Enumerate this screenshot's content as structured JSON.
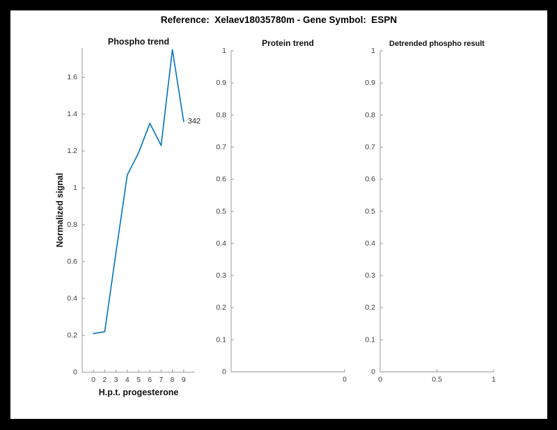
{
  "header": {
    "title": "Reference:  Xelaev18035780m - Gene Symbol:  ESPN"
  },
  "colors": {
    "line_blue": "#0072BD",
    "axis_gray": "#999999",
    "tick_text": "#3b3b3b",
    "figure_background": "#ffffff",
    "frame_background": "#000000"
  },
  "chart_data": [
    {
      "type": "line",
      "title": "Phospho trend",
      "xlabel": "H.p.t. progesterone",
      "ylabel": "Normalized signal",
      "line_color": "#0072BD",
      "grid": false,
      "legend": null,
      "ylim": [
        0,
        1.76
      ],
      "x_categories": [
        "0",
        "2",
        "3",
        "4",
        "5",
        "6",
        "7",
        "8",
        "9"
      ],
      "values": [
        0.21,
        0.22,
        0.65,
        1.07,
        1.19,
        1.35,
        1.23,
        1.75,
        1.36
      ],
      "points": [
        {
          "label": "0",
          "u": 0.1,
          "v": 0.21
        },
        {
          "label": "2",
          "u": 0.2,
          "v": 0.22
        },
        {
          "label": "3",
          "u": 0.3,
          "v": 0.65
        },
        {
          "label": "4",
          "u": 0.4,
          "v": 1.07
        },
        {
          "label": "5",
          "u": 0.5,
          "v": 1.19
        },
        {
          "label": "6",
          "u": 0.6,
          "v": 1.35
        },
        {
          "label": "7",
          "u": 0.7,
          "v": 1.23
        },
        {
          "label": "8",
          "u": 0.8,
          "v": 1.75
        },
        {
          "label": "9",
          "u": 0.9,
          "v": 1.36
        }
      ],
      "yticks": [
        {
          "v": 0,
          "label": "0"
        },
        {
          "v": 0.2,
          "label": "0.2"
        },
        {
          "v": 0.4,
          "label": "0.4"
        },
        {
          "v": 0.6,
          "label": "0.6"
        },
        {
          "v": 0.8,
          "label": "0.8"
        },
        {
          "v": 1,
          "label": "1"
        },
        {
          "v": 1.2,
          "label": "1.2"
        },
        {
          "v": 1.4,
          "label": "1.4"
        },
        {
          "v": 1.6,
          "label": "1.6"
        }
      ],
      "annotation": {
        "text": "342",
        "u": 0.9,
        "v": 1.36
      }
    },
    {
      "type": "line",
      "title": "Protein trend",
      "xlabel": "",
      "ylabel": "",
      "grid": false,
      "legend": null,
      "ylim": [
        0,
        1
      ],
      "values": [],
      "points": [],
      "xticks": [
        {
          "u": 1,
          "label": "0"
        }
      ],
      "yticks": [
        {
          "v": 0,
          "label": "0"
        },
        {
          "v": 0.1,
          "label": "0.1"
        },
        {
          "v": 0.2,
          "label": "0.2"
        },
        {
          "v": 0.3,
          "label": "0.3"
        },
        {
          "v": 0.4,
          "label": "0.4"
        },
        {
          "v": 0.5,
          "label": "0.5"
        },
        {
          "v": 0.6,
          "label": "0.6"
        },
        {
          "v": 0.7,
          "label": "0.7"
        },
        {
          "v": 0.8,
          "label": "0.8"
        },
        {
          "v": 0.9,
          "label": "0.9"
        },
        {
          "v": 1,
          "label": "1"
        }
      ]
    },
    {
      "type": "line",
      "title": "Detrended phospho result",
      "xlabel": "",
      "ylabel": "",
      "grid": false,
      "legend": null,
      "xlim": [
        0,
        1
      ],
      "ylim": [
        0,
        1
      ],
      "values": [],
      "points": [],
      "xticks": [
        {
          "u": 0,
          "label": "0"
        },
        {
          "u": 0.5,
          "label": "0.5"
        },
        {
          "u": 1,
          "label": "1"
        }
      ],
      "yticks": [
        {
          "v": 0,
          "label": "0"
        },
        {
          "v": 0.1,
          "label": "0.1"
        },
        {
          "v": 0.2,
          "label": "0.2"
        },
        {
          "v": 0.3,
          "label": "0.3"
        },
        {
          "v": 0.4,
          "label": "0.4"
        },
        {
          "v": 0.5,
          "label": "0.5"
        },
        {
          "v": 0.6,
          "label": "0.6"
        },
        {
          "v": 0.7,
          "label": "0.7"
        },
        {
          "v": 0.8,
          "label": "0.8"
        },
        {
          "v": 0.9,
          "label": "0.9"
        },
        {
          "v": 1,
          "label": "1"
        }
      ]
    }
  ]
}
